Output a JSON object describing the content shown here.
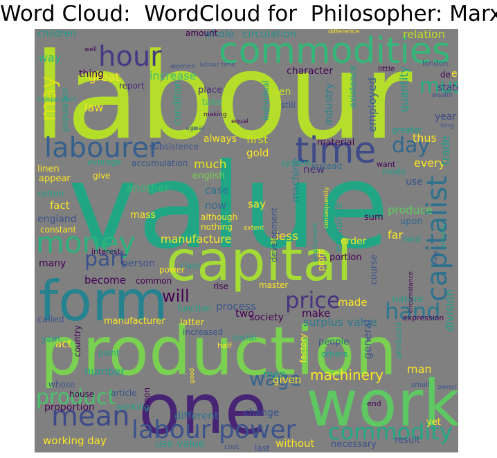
{
  "title": "Word Cloud:  WordCloud for  Philosopher: Marx",
  "words": [
    {
      "text": "labour",
      "color": "#b5de2b"
    },
    {
      "text": "value",
      "color": "#21a685"
    },
    {
      "text": "production",
      "color": "#7ad151"
    },
    {
      "text": "capital",
      "color": "#a5db36"
    },
    {
      "text": "one",
      "color": "#482475"
    },
    {
      "text": "work",
      "color": "#5ec962"
    },
    {
      "text": "form",
      "color": "#26828e"
    },
    {
      "text": "commodities",
      "color": "#35b779"
    },
    {
      "text": "time",
      "color": "#3e4a89"
    },
    {
      "text": "hour",
      "color": "#443983"
    },
    {
      "text": "labourer",
      "color": "#355f8d"
    },
    {
      "text": "money",
      "color": "#2db27d"
    },
    {
      "text": "mean",
      "color": "#3e4989"
    },
    {
      "text": "capitalist",
      "color": "#2c718e"
    },
    {
      "text": "price",
      "color": "#46327e"
    },
    {
      "text": "labour power",
      "color": "#3b528b"
    },
    {
      "text": "commodity",
      "color": "#22a884"
    },
    {
      "text": "product",
      "color": "#4ac16d"
    },
    {
      "text": "wage",
      "color": "#33638d"
    },
    {
      "text": "hand",
      "color": "#2a788e"
    },
    {
      "text": "day",
      "color": "#31688e"
    },
    {
      "text": "part",
      "color": "#3b528b"
    },
    {
      "text": "will",
      "color": "#440154"
    },
    {
      "text": "may",
      "color": "#d8e219"
    },
    {
      "text": "must",
      "color": "#26ad81"
    },
    {
      "text": "machinery",
      "color": "#fde725"
    },
    {
      "text": "surplus value",
      "color": "#2a788e"
    },
    {
      "text": "division",
      "color": "#1f9e89"
    },
    {
      "text": "relation",
      "color": "#bddf26"
    },
    {
      "text": "circulation",
      "color": "#21918c"
    },
    {
      "text": "whole",
      "color": "#25848e"
    },
    {
      "text": "children",
      "color": "#1f988b"
    },
    {
      "text": "way",
      "color": "#2db27d"
    },
    {
      "text": "increase",
      "color": "#3bbb75"
    },
    {
      "text": "great",
      "color": "#fde725"
    },
    {
      "text": "thing",
      "color": "#440154"
    },
    {
      "text": "law",
      "color": "#fde725"
    },
    {
      "text": "report",
      "color": "#482878"
    },
    {
      "text": "place",
      "color": "#472c7a"
    },
    {
      "text": "take",
      "color": "#35b779"
    },
    {
      "text": "condition",
      "color": "#22a884"
    },
    {
      "text": "even",
      "color": "#c2df23"
    },
    {
      "text": "employed",
      "color": "#355f8d"
    },
    {
      "text": "industry",
      "color": "#26828e"
    },
    {
      "text": "quantity",
      "color": "#1f9e89"
    },
    {
      "text": "state",
      "color": "#3f4889"
    },
    {
      "text": "year",
      "color": "#3e4989"
    },
    {
      "text": "first",
      "color": "#d2e21b"
    },
    {
      "text": "gold",
      "color": "#fde725"
    },
    {
      "text": "thus",
      "color": "#fde725"
    },
    {
      "text": "much",
      "color": "#e5e419"
    },
    {
      "text": "every",
      "color": "#fde725"
    },
    {
      "text": "trade",
      "color": "#1f9e89"
    },
    {
      "text": "new",
      "color": "#472d7b"
    },
    {
      "text": "accumulation",
      "color": "#3b528b"
    },
    {
      "text": "linen",
      "color": "#fde725"
    },
    {
      "text": "average",
      "color": "#22a884"
    },
    {
      "text": "appear",
      "color": "#fde725"
    },
    {
      "text": "give",
      "color": "#fde725"
    },
    {
      "text": "english",
      "color": "#7ad151"
    },
    {
      "text": "system",
      "color": "#1f9e89"
    },
    {
      "text": "machine",
      "color": "#26828e"
    },
    {
      "text": "instead",
      "color": "#31688e"
    },
    {
      "text": "use",
      "color": "#3b528b"
    },
    {
      "text": "mode",
      "color": "#1f9e89"
    },
    {
      "text": "another",
      "color": "#35b779"
    },
    {
      "text": "case",
      "color": "#2c718e"
    },
    {
      "text": "fact",
      "color": "#fde725"
    },
    {
      "text": "now",
      "color": "#31688e"
    },
    {
      "text": "say",
      "color": "#fde725"
    },
    {
      "text": "produce",
      "color": "#5ec962"
    },
    {
      "text": "sum",
      "color": "#440154"
    },
    {
      "text": "upon",
      "color": "#31688e"
    },
    {
      "text": "england",
      "color": "#3b528b"
    },
    {
      "text": "mass",
      "color": "#fde725"
    },
    {
      "text": "manufacture",
      "color": "#fde725"
    },
    {
      "text": "less",
      "color": "#fde725"
    },
    {
      "text": "exchange",
      "color": "#1f9e89"
    },
    {
      "text": "order",
      "color": "#fde725"
    },
    {
      "text": "far",
      "color": "#fde725"
    },
    {
      "text": "land",
      "color": "#1f9e89"
    },
    {
      "text": "many",
      "color": "#440154"
    },
    {
      "text": "person",
      "color": "#3b528b"
    },
    {
      "text": "become",
      "color": "#440154"
    },
    {
      "text": "class",
      "color": "#1f9e89"
    },
    {
      "text": "portion",
      "color": "#440154"
    },
    {
      "text": "course",
      "color": "#3b528b"
    },
    {
      "text": "process",
      "color": "#3b528b"
    },
    {
      "text": "two",
      "color": "#440154"
    },
    {
      "text": "made",
      "color": "#fde725"
    },
    {
      "text": "nature",
      "color": "#1f9e89"
    },
    {
      "text": "society",
      "color": "#440154"
    },
    {
      "text": "make",
      "color": "#440154"
    },
    {
      "text": "called",
      "color": "#3b528b"
    },
    {
      "text": "manufacturer",
      "color": "#fde725"
    },
    {
      "text": "act",
      "color": "#fde725"
    },
    {
      "text": "number",
      "color": "#1f9e89"
    },
    {
      "text": "men",
      "color": "#1f9e89"
    },
    {
      "text": "general",
      "color": "#3b528b"
    },
    {
      "text": "people",
      "color": "#3b528b"
    },
    {
      "text": "others",
      "color": "#1f9e89"
    },
    {
      "text": "man",
      "color": "#fde725"
    },
    {
      "text": "given",
      "color": "#fde725"
    },
    {
      "text": "change",
      "color": "#3b528b"
    },
    {
      "text": "different",
      "color": "#2c718e"
    },
    {
      "text": "proportion",
      "color": "#440154"
    },
    {
      "text": "working",
      "color": "#1f9e89"
    },
    {
      "text": "working day",
      "color": "#fde725"
    },
    {
      "text": "use value",
      "color": "#1f9e89"
    },
    {
      "text": "without",
      "color": "#fde725"
    },
    {
      "text": "necessary",
      "color": "#3b528b"
    },
    {
      "text": "result",
      "color": "#3b528b"
    },
    {
      "text": "last",
      "color": "#3b528b"
    },
    {
      "text": "cost",
      "color": "#3b528b"
    },
    {
      "text": "yet",
      "color": "#fde725"
    },
    {
      "text": "amount",
      "color": "#440154"
    },
    {
      "text": "character",
      "color": "#440154"
    },
    {
      "text": "existence",
      "color": "#1f9e89"
    },
    {
      "text": "little",
      "color": "#440154"
    },
    {
      "text": "london",
      "color": "#3b528b"
    },
    {
      "text": "de",
      "color": "#440154"
    },
    {
      "text": "women",
      "color": "#3b528b"
    },
    {
      "text": "individual",
      "color": "#1f9e89"
    },
    {
      "text": "still",
      "color": "#3b528b"
    },
    {
      "text": "always",
      "color": "#fde725"
    },
    {
      "text": "material",
      "color": "#440154"
    },
    {
      "text": "greater",
      "color": "#1f9e89"
    },
    {
      "text": "want",
      "color": "#440154"
    },
    {
      "text": "subsistence",
      "color": "#3b528b"
    },
    {
      "text": "population",
      "color": "#1f9e89"
    },
    {
      "text": "cotton",
      "color": "#1f9e89"
    },
    {
      "text": "constant",
      "color": "#fde725"
    },
    {
      "text": "although",
      "color": "#fde725"
    },
    {
      "text": "nothing",
      "color": "#fde725"
    },
    {
      "text": "development",
      "color": "#3b528b"
    },
    {
      "text": "interest",
      "color": "#440154"
    },
    {
      "text": "power",
      "color": "#fde725"
    },
    {
      "text": "common",
      "color": "#440154"
    },
    {
      "text": "profit",
      "color": "#fde725"
    },
    {
      "text": "rise",
      "color": "#440154"
    },
    {
      "text": "master",
      "color": "#fde725"
    },
    {
      "text": "function",
      "color": "#1f9e89"
    },
    {
      "text": "latter",
      "color": "#fde725"
    },
    {
      "text": "increased",
      "color": "#3b528b"
    },
    {
      "text": "country",
      "color": "#440154"
    },
    {
      "text": "social",
      "color": "#1f9e89"
    },
    {
      "text": "produced",
      "color": "#1f9e89"
    },
    {
      "text": "factory",
      "color": "#fde725"
    },
    {
      "text": "expression",
      "color": "#440154"
    },
    {
      "text": "half",
      "color": "#fde725"
    },
    {
      "text": "yarn",
      "color": "#1f9e89"
    },
    {
      "text": "point",
      "color": "#1f9e89"
    },
    {
      "text": "whose",
      "color": "#3b528b"
    },
    {
      "text": "house",
      "color": "#440154"
    },
    {
      "text": "article",
      "color": "#3b528b"
    },
    {
      "text": "soon",
      "color": "#440154"
    },
    {
      "text": "small",
      "color": "#3b528b"
    },
    {
      "text": "end",
      "color": "#440154"
    },
    {
      "text": "difference",
      "color": "#fde725"
    },
    {
      "text": "age",
      "color": "#3b528b"
    },
    {
      "text": "equal",
      "color": "#440154"
    },
    {
      "text": "consequently",
      "color": "#fde725"
    },
    {
      "text": "extent",
      "color": "#fde725"
    },
    {
      "text": "employment",
      "color": "#1f9e89"
    },
    {
      "text": "independent",
      "color": "#1f9e89"
    },
    {
      "text": "wealth",
      "color": "#3b528b"
    },
    {
      "text": "long",
      "color": "#3b528b"
    },
    {
      "text": "making",
      "color": "#440154"
    },
    {
      "text": "labour time",
      "color": "#3b528b"
    },
    {
      "text": "well",
      "color": "#440154"
    },
    {
      "text": "already",
      "color": "#1f9e89"
    },
    {
      "text": "coat",
      "color": "#3b528b"
    },
    {
      "text": "mere",
      "color": "#3b528b"
    },
    {
      "text": "circumstance",
      "color": "#440154"
    },
    {
      "text": "good",
      "color": "#fde725"
    },
    {
      "text": "owner",
      "color": "#3b528b"
    },
    {
      "text": "e",
      "color": "#fde725"
    }
  ]
}
